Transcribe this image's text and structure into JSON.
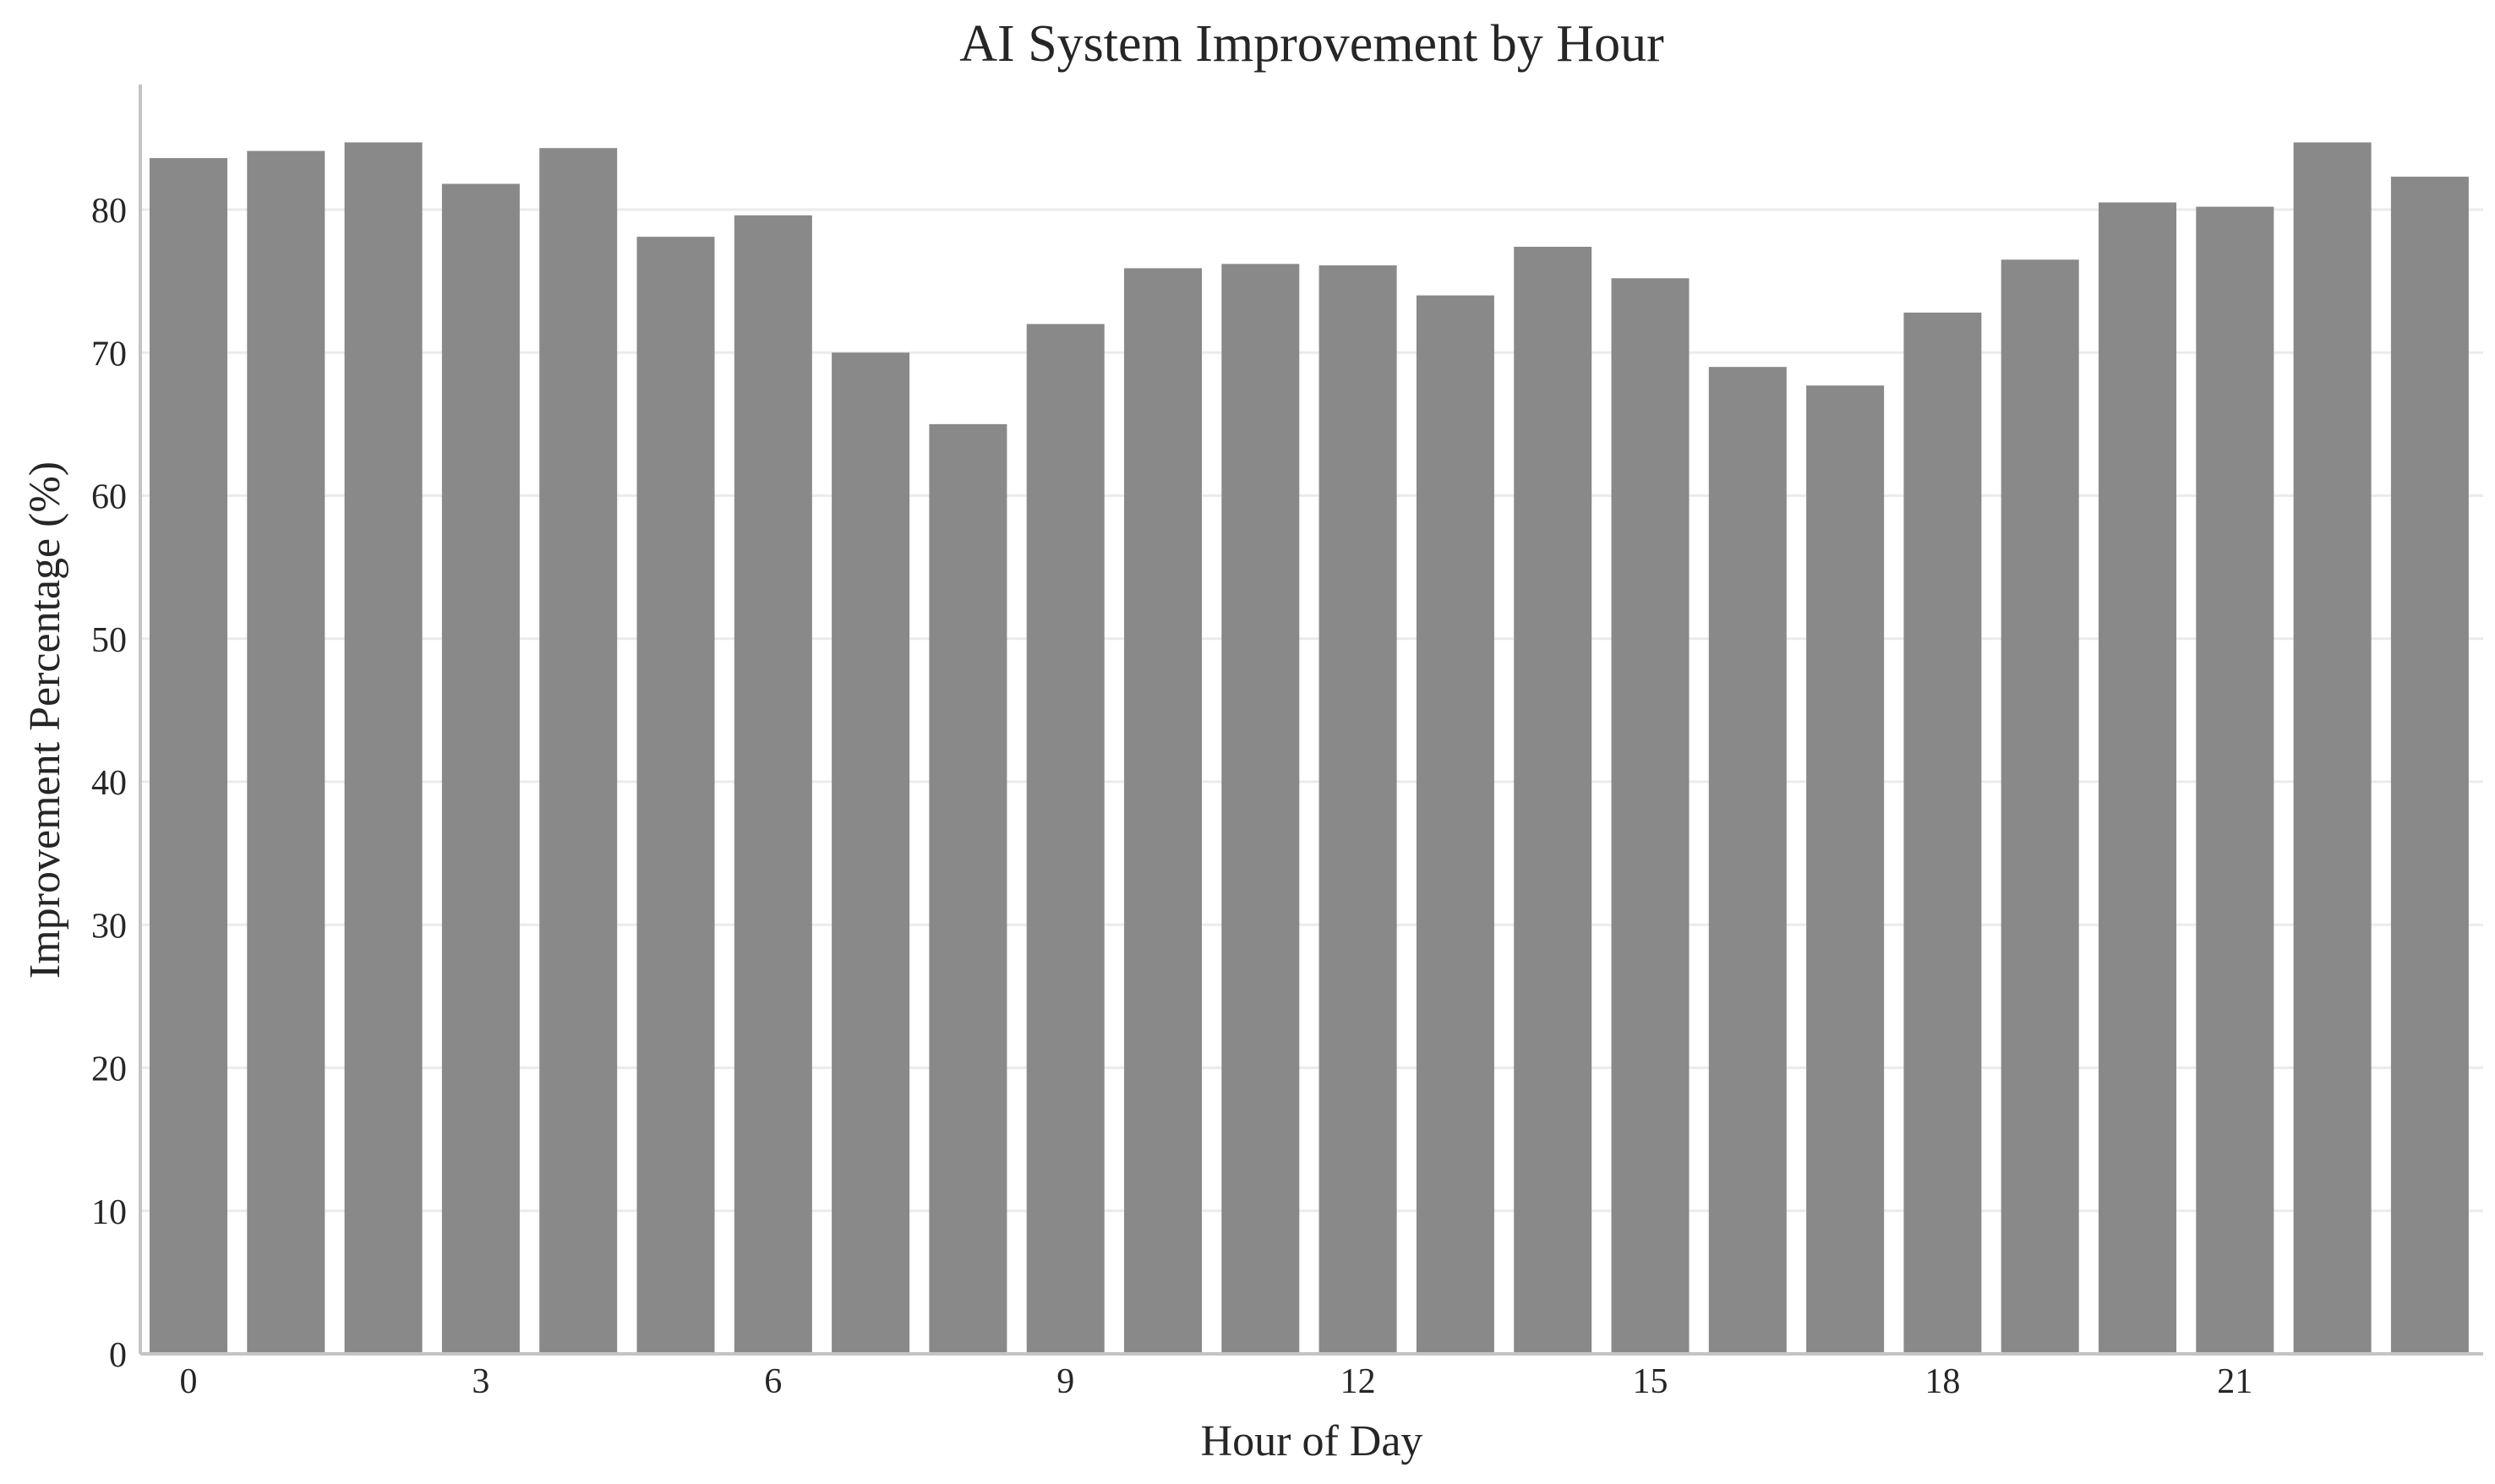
{
  "chart_data": {
    "type": "bar",
    "title": "AI System Improvement by Hour",
    "xlabel": "Hour of Day",
    "ylabel": "Improvement Percentage (%)",
    "categories": [
      0,
      1,
      2,
      3,
      4,
      5,
      6,
      7,
      8,
      9,
      10,
      11,
      12,
      13,
      14,
      15,
      16,
      17,
      18,
      19,
      20,
      21,
      22,
      23
    ],
    "values": [
      83.6,
      84.1,
      84.7,
      81.8,
      84.3,
      78.1,
      79.6,
      70.0,
      65.0,
      72.0,
      75.9,
      76.2,
      76.1,
      74.0,
      77.4,
      75.2,
      69.0,
      67.7,
      72.8,
      76.5,
      80.5,
      80.2,
      84.7,
      82.3
    ],
    "xticks": [
      0,
      3,
      6,
      9,
      12,
      15,
      18,
      21
    ],
    "yticks": [
      0,
      10,
      20,
      30,
      40,
      50,
      60,
      70,
      80
    ],
    "ylim": [
      0,
      89
    ],
    "grid": "horizontal",
    "bar_color": "#898989"
  }
}
